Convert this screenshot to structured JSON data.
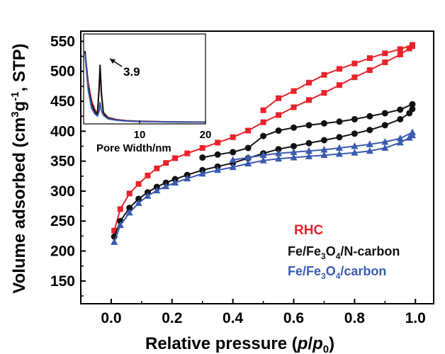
{
  "chart_data": {
    "type": "scatter",
    "xlabel_main": "Relative pressure (",
    "xlabel_p": "p",
    "xlabel_slash": "/",
    "xlabel_p0": "p",
    "xlabel_sub": "0",
    "xlabel_close": ")",
    "ylabel_part1": "Volume adsorbed (cm",
    "ylabel_sup1": "3",
    "ylabel_part2": "g",
    "ylabel_sup2": "-1",
    "ylabel_part3": ", STP)",
    "xlim": [
      -0.1,
      1.06
    ],
    "ylim": [
      112,
      567
    ],
    "x_ticks": [
      0.0,
      0.2,
      0.4,
      0.6,
      0.8,
      1.0
    ],
    "x_tick_labels": [
      "0.0",
      "0.2",
      "0.4",
      "0.6",
      "0.8",
      "1.0"
    ],
    "y_ticks": [
      150,
      200,
      250,
      300,
      350,
      400,
      450,
      500,
      550
    ],
    "y_tick_labels": [
      "150",
      "200",
      "250",
      "300",
      "350",
      "400",
      "450",
      "500",
      "550"
    ],
    "colors": {
      "RHC": "#e8232a",
      "FeN": "#111111",
      "FeC": "#3a5bb0"
    },
    "legend_labels": {
      "rhc": "RHC",
      "fen_a": "Fe/Fe",
      "fen_sub": "3",
      "fen_b": "O",
      "fen_sub2": "4",
      "fen_c": "/N-carbon",
      "fec_a": "Fe/Fe",
      "fec_sub": "3",
      "fec_b": "O",
      "fec_sub2": "4",
      "fec_c": "/carbon"
    },
    "series": [
      {
        "name": "RHC",
        "color": "#e8232a",
        "marker": "square",
        "adsorption": [
          [
            0.01,
            234
          ],
          [
            0.03,
            270
          ],
          [
            0.06,
            296
          ],
          [
            0.09,
            312
          ],
          [
            0.12,
            326
          ],
          [
            0.15,
            338
          ],
          [
            0.18,
            347
          ],
          [
            0.21,
            355
          ],
          [
            0.25,
            363
          ],
          [
            0.3,
            372
          ],
          [
            0.35,
            381
          ],
          [
            0.4,
            390
          ],
          [
            0.45,
            401
          ],
          [
            0.5,
            415
          ],
          [
            0.55,
            427
          ],
          [
            0.6,
            440
          ],
          [
            0.65,
            452
          ],
          [
            0.7,
            464
          ],
          [
            0.75,
            477
          ],
          [
            0.8,
            490
          ],
          [
            0.85,
            502
          ],
          [
            0.9,
            515
          ],
          [
            0.95,
            528
          ],
          [
            0.98,
            538
          ],
          [
            0.99,
            542
          ]
        ],
        "desorption": [
          [
            0.99,
            544
          ],
          [
            0.95,
            537
          ],
          [
            0.9,
            530
          ],
          [
            0.85,
            522
          ],
          [
            0.8,
            513
          ],
          [
            0.75,
            504
          ],
          [
            0.7,
            494
          ],
          [
            0.65,
            481
          ],
          [
            0.6,
            467
          ],
          [
            0.55,
            455
          ],
          [
            0.5,
            435
          ]
        ]
      },
      {
        "name": "Fe/Fe3O4/N-carbon",
        "color": "#111111",
        "marker": "circle",
        "adsorption": [
          [
            0.01,
            224
          ],
          [
            0.03,
            250
          ],
          [
            0.06,
            272
          ],
          [
            0.09,
            287
          ],
          [
            0.12,
            298
          ],
          [
            0.15,
            307
          ],
          [
            0.18,
            314
          ],
          [
            0.21,
            320
          ],
          [
            0.25,
            327
          ],
          [
            0.3,
            335
          ],
          [
            0.35,
            341
          ],
          [
            0.4,
            347
          ],
          [
            0.45,
            355
          ],
          [
            0.5,
            363
          ],
          [
            0.55,
            370
          ],
          [
            0.6,
            375
          ],
          [
            0.65,
            380
          ],
          [
            0.7,
            385
          ],
          [
            0.75,
            390
          ],
          [
            0.8,
            396
          ],
          [
            0.85,
            402
          ],
          [
            0.9,
            410
          ],
          [
            0.95,
            420
          ],
          [
            0.98,
            430
          ],
          [
            0.99,
            437
          ]
        ],
        "desorption": [
          [
            0.99,
            445
          ],
          [
            0.95,
            436
          ],
          [
            0.9,
            430
          ],
          [
            0.85,
            425
          ],
          [
            0.8,
            420
          ],
          [
            0.75,
            416
          ],
          [
            0.7,
            413
          ],
          [
            0.65,
            410
          ],
          [
            0.6,
            406
          ],
          [
            0.55,
            401
          ],
          [
            0.5,
            392
          ],
          [
            0.45,
            372
          ],
          [
            0.4,
            365
          ],
          [
            0.35,
            361
          ],
          [
            0.3,
            356
          ]
        ]
      },
      {
        "name": "Fe/Fe3O4/carbon",
        "color": "#3a5bb0",
        "marker": "triangle",
        "adsorption": [
          [
            0.01,
            215
          ],
          [
            0.03,
            243
          ],
          [
            0.06,
            264
          ],
          [
            0.09,
            280
          ],
          [
            0.12,
            292
          ],
          [
            0.15,
            301
          ],
          [
            0.18,
            308
          ],
          [
            0.21,
            314
          ],
          [
            0.25,
            321
          ],
          [
            0.3,
            329
          ],
          [
            0.35,
            335
          ],
          [
            0.4,
            340
          ],
          [
            0.45,
            346
          ],
          [
            0.5,
            351
          ],
          [
            0.55,
            354
          ],
          [
            0.6,
            356
          ],
          [
            0.65,
            358
          ],
          [
            0.7,
            360
          ],
          [
            0.75,
            362
          ],
          [
            0.8,
            364
          ],
          [
            0.85,
            367
          ],
          [
            0.9,
            372
          ],
          [
            0.95,
            381
          ],
          [
            0.98,
            389
          ],
          [
            0.99,
            393
          ]
        ],
        "desorption": [
          [
            0.99,
            398
          ],
          [
            0.95,
            388
          ],
          [
            0.9,
            382
          ],
          [
            0.85,
            378
          ],
          [
            0.8,
            375
          ],
          [
            0.75,
            372
          ],
          [
            0.7,
            369
          ],
          [
            0.65,
            367
          ],
          [
            0.6,
            365
          ],
          [
            0.55,
            363
          ],
          [
            0.5,
            360
          ],
          [
            0.45,
            356
          ],
          [
            0.4,
            352
          ]
        ]
      }
    ],
    "inset": {
      "xlabel": "Pore Width/nm",
      "x_ticks": [
        10,
        20
      ],
      "x_tick_labels": [
        "10",
        "20"
      ],
      "xlim": [
        1.5,
        20
      ],
      "ylim": [
        0,
        1
      ],
      "annotation": "3.9",
      "annotation_x": 3.9,
      "series": [
        {
          "name": "RHC",
          "color": "#e8232a",
          "points": [
            [
              1.7,
              0.98
            ],
            [
              2.2,
              0.55
            ],
            [
              2.7,
              0.3
            ],
            [
              3.2,
              0.18
            ],
            [
              3.6,
              0.12
            ],
            [
              3.85,
              0.5
            ],
            [
              4.0,
              0.72
            ],
            [
              4.2,
              0.38
            ],
            [
              4.5,
              0.14
            ],
            [
              5.2,
              0.07
            ],
            [
              6.5,
              0.04
            ],
            [
              8,
              0.025
            ],
            [
              10,
              0.018
            ],
            [
              13,
              0.012
            ],
            [
              16,
              0.008
            ],
            [
              20,
              0.006
            ]
          ]
        },
        {
          "name": "Fe/Fe3O4/N-carbon",
          "color": "#111111",
          "points": [
            [
              1.7,
              0.99
            ],
            [
              2.2,
              0.5
            ],
            [
              2.7,
              0.26
            ],
            [
              3.2,
              0.15
            ],
            [
              3.6,
              0.11
            ],
            [
              3.85,
              0.45
            ],
            [
              4.0,
              0.8
            ],
            [
              4.2,
              0.42
            ],
            [
              4.5,
              0.13
            ],
            [
              5.2,
              0.06
            ],
            [
              6.5,
              0.035
            ],
            [
              8,
              0.022
            ],
            [
              10,
              0.015
            ],
            [
              13,
              0.01
            ],
            [
              16,
              0.007
            ],
            [
              20,
              0.005
            ]
          ]
        },
        {
          "name": "Fe/Fe3O4/carbon",
          "color": "#3a5bb0",
          "points": [
            [
              1.7,
              0.95
            ],
            [
              2.2,
              0.45
            ],
            [
              2.7,
              0.2
            ],
            [
              3.2,
              0.12
            ],
            [
              3.6,
              0.09
            ],
            [
              3.85,
              0.15
            ],
            [
              4.0,
              0.28
            ],
            [
              4.2,
              0.16
            ],
            [
              4.5,
              0.1
            ],
            [
              5.2,
              0.05
            ],
            [
              6.5,
              0.03
            ],
            [
              8,
              0.02
            ],
            [
              10,
              0.013
            ],
            [
              13,
              0.009
            ],
            [
              16,
              0.006
            ],
            [
              20,
              0.004
            ]
          ]
        }
      ]
    }
  }
}
